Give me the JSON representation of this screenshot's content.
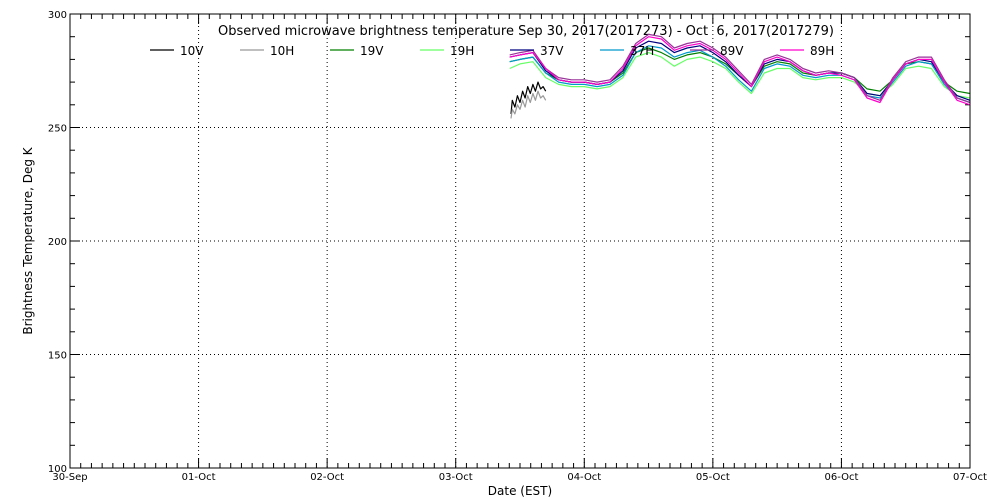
{
  "chart_data": {
    "type": "line",
    "title": "Observed microwave brightness temperature Sep 30, 2017(2017273) - Oct  6, 2017(2017279)",
    "xlabel": "Date (EST)",
    "ylabel": "Brightness Temperature, Deg K",
    "xlim": [
      0,
      7
    ],
    "ylim": [
      100,
      300
    ],
    "x_tick_labels": [
      "30-Sep",
      "01-Oct",
      "02-Oct",
      "03-Oct",
      "04-Oct",
      "05-Oct",
      "06-Oct",
      "07-Oct"
    ],
    "y_ticks": [
      100,
      150,
      200,
      250,
      300
    ],
    "grid": true,
    "legend_position": "top",
    "series": [
      {
        "name": "10V",
        "color": "#000000",
        "x": [
          3.43,
          3.44,
          3.46,
          3.48,
          3.5,
          3.52,
          3.54,
          3.56,
          3.58,
          3.6,
          3.62,
          3.64,
          3.66,
          3.68,
          3.7
        ],
        "y": [
          256,
          262,
          259,
          264,
          261,
          266,
          263,
          268,
          265,
          269,
          266,
          270,
          267,
          268,
          266
        ]
      },
      {
        "name": "10H",
        "color": "#999999",
        "x": [
          3.43,
          3.44,
          3.46,
          3.48,
          3.5,
          3.52,
          3.54,
          3.56,
          3.58,
          3.6,
          3.62,
          3.64,
          3.66,
          3.68,
          3.7
        ],
        "y": [
          254,
          258,
          256,
          260,
          258,
          262,
          259,
          264,
          261,
          265,
          262,
          266,
          263,
          264,
          262
        ]
      },
      {
        "name": "19V",
        "color": "#008000",
        "x": [
          3.42,
          3.5,
          3.6,
          3.7,
          3.8,
          3.9,
          4.0,
          4.1,
          4.2,
          4.3,
          4.4,
          4.5,
          4.6,
          4.7,
          4.8,
          4.9,
          5.0,
          5.1,
          5.2,
          5.3,
          5.4,
          5.5,
          5.6,
          5.7,
          5.8,
          5.9,
          6.0,
          6.1,
          6.2,
          6.3,
          6.4,
          6.5,
          6.6,
          6.7,
          6.8,
          6.9,
          7.0
        ],
        "y": [
          279,
          280,
          281,
          274,
          271,
          270,
          270,
          269,
          270,
          274,
          283,
          285,
          283,
          280,
          282,
          283,
          281,
          278,
          273,
          268,
          277,
          279,
          278,
          274,
          273,
          274,
          274,
          272,
          267,
          266,
          271,
          278,
          279,
          278,
          270,
          266,
          265
        ]
      },
      {
        "name": "19H",
        "color": "#66ff66",
        "x": [
          3.42,
          3.5,
          3.6,
          3.7,
          3.8,
          3.9,
          4.0,
          4.1,
          4.2,
          4.3,
          4.4,
          4.5,
          4.6,
          4.7,
          4.8,
          4.9,
          5.0,
          5.1,
          5.2,
          5.3,
          5.4,
          5.5,
          5.6,
          5.7,
          5.8,
          5.9,
          6.0,
          6.1,
          6.2,
          6.3,
          6.4,
          6.5,
          6.6,
          6.7,
          6.8,
          6.9,
          7.0
        ],
        "y": [
          276,
          278,
          279,
          272,
          269,
          268,
          268,
          267,
          268,
          272,
          281,
          283,
          281,
          277,
          280,
          281,
          279,
          276,
          270,
          265,
          274,
          276,
          276,
          272,
          271,
          272,
          272,
          270,
          265,
          264,
          269,
          276,
          277,
          276,
          268,
          264,
          263
        ]
      },
      {
        "name": "37V",
        "color": "#000080",
        "x": [
          3.42,
          3.5,
          3.6,
          3.7,
          3.8,
          3.9,
          4.0,
          4.1,
          4.2,
          4.3,
          4.4,
          4.5,
          4.6,
          4.7,
          4.8,
          4.9,
          5.0,
          5.1,
          5.2,
          5.3,
          5.4,
          5.5,
          5.6,
          5.7,
          5.8,
          5.9,
          6.0,
          6.1,
          6.2,
          6.3,
          6.4,
          6.5,
          6.6,
          6.7,
          6.8,
          6.9,
          7.0
        ],
        "y": [
          281,
          282,
          283,
          275,
          271,
          270,
          270,
          269,
          270,
          275,
          285,
          288,
          287,
          283,
          285,
          286,
          283,
          279,
          273,
          268,
          278,
          280,
          279,
          275,
          273,
          274,
          274,
          272,
          265,
          264,
          271,
          278,
          280,
          279,
          270,
          264,
          262
        ]
      },
      {
        "name": "37H",
        "color": "#0099cc",
        "x": [
          3.42,
          3.5,
          3.6,
          3.7,
          3.8,
          3.9,
          4.0,
          4.1,
          4.2,
          4.3,
          4.4,
          4.5,
          4.6,
          4.7,
          4.8,
          4.9,
          5.0,
          5.1,
          5.2,
          5.3,
          5.4,
          5.5,
          5.6,
          5.7,
          5.8,
          5.9,
          6.0,
          6.1,
          6.2,
          6.3,
          6.4,
          6.5,
          6.6,
          6.7,
          6.8,
          6.9,
          7.0
        ],
        "y": [
          279,
          280,
          281,
          274,
          270,
          269,
          269,
          268,
          269,
          273,
          283,
          286,
          285,
          281,
          283,
          284,
          281,
          277,
          271,
          266,
          276,
          278,
          277,
          273,
          272,
          273,
          273,
          271,
          264,
          263,
          270,
          277,
          279,
          278,
          269,
          263,
          261
        ]
      },
      {
        "name": "89V",
        "color": "#993399",
        "x": [
          3.42,
          3.5,
          3.6,
          3.7,
          3.8,
          3.9,
          4.0,
          4.1,
          4.2,
          4.3,
          4.4,
          4.5,
          4.6,
          4.7,
          4.8,
          4.9,
          5.0,
          5.1,
          5.2,
          5.3,
          5.4,
          5.5,
          5.6,
          5.7,
          5.8,
          5.9,
          6.0,
          6.1,
          6.2,
          6.3,
          6.4,
          6.5,
          6.6,
          6.7,
          6.8,
          6.9,
          7.0
        ],
        "y": [
          282,
          283,
          284,
          276,
          272,
          271,
          271,
          270,
          271,
          277,
          287,
          291,
          290,
          285,
          287,
          288,
          285,
          281,
          275,
          269,
          280,
          282,
          280,
          276,
          274,
          275,
          274,
          272,
          264,
          262,
          272,
          279,
          281,
          281,
          271,
          263,
          261
        ]
      },
      {
        "name": "89H",
        "color": "#ff00cc",
        "x": [
          3.42,
          3.5,
          3.6,
          3.7,
          3.8,
          3.9,
          4.0,
          4.1,
          4.2,
          4.3,
          4.4,
          4.5,
          4.6,
          4.7,
          4.8,
          4.9,
          5.0,
          5.1,
          5.2,
          5.3,
          5.4,
          5.5,
          5.6,
          5.7,
          5.8,
          5.9,
          6.0,
          6.1,
          6.2,
          6.3,
          6.4,
          6.5,
          6.6,
          6.7,
          6.8,
          6.9,
          7.0
        ],
        "y": [
          281,
          282,
          283,
          276,
          271,
          270,
          270,
          269,
          270,
          276,
          286,
          290,
          289,
          284,
          286,
          287,
          284,
          280,
          274,
          268,
          279,
          281,
          279,
          275,
          273,
          274,
          273,
          271,
          263,
          261,
          271,
          278,
          280,
          280,
          270,
          262,
          260
        ]
      }
    ]
  }
}
